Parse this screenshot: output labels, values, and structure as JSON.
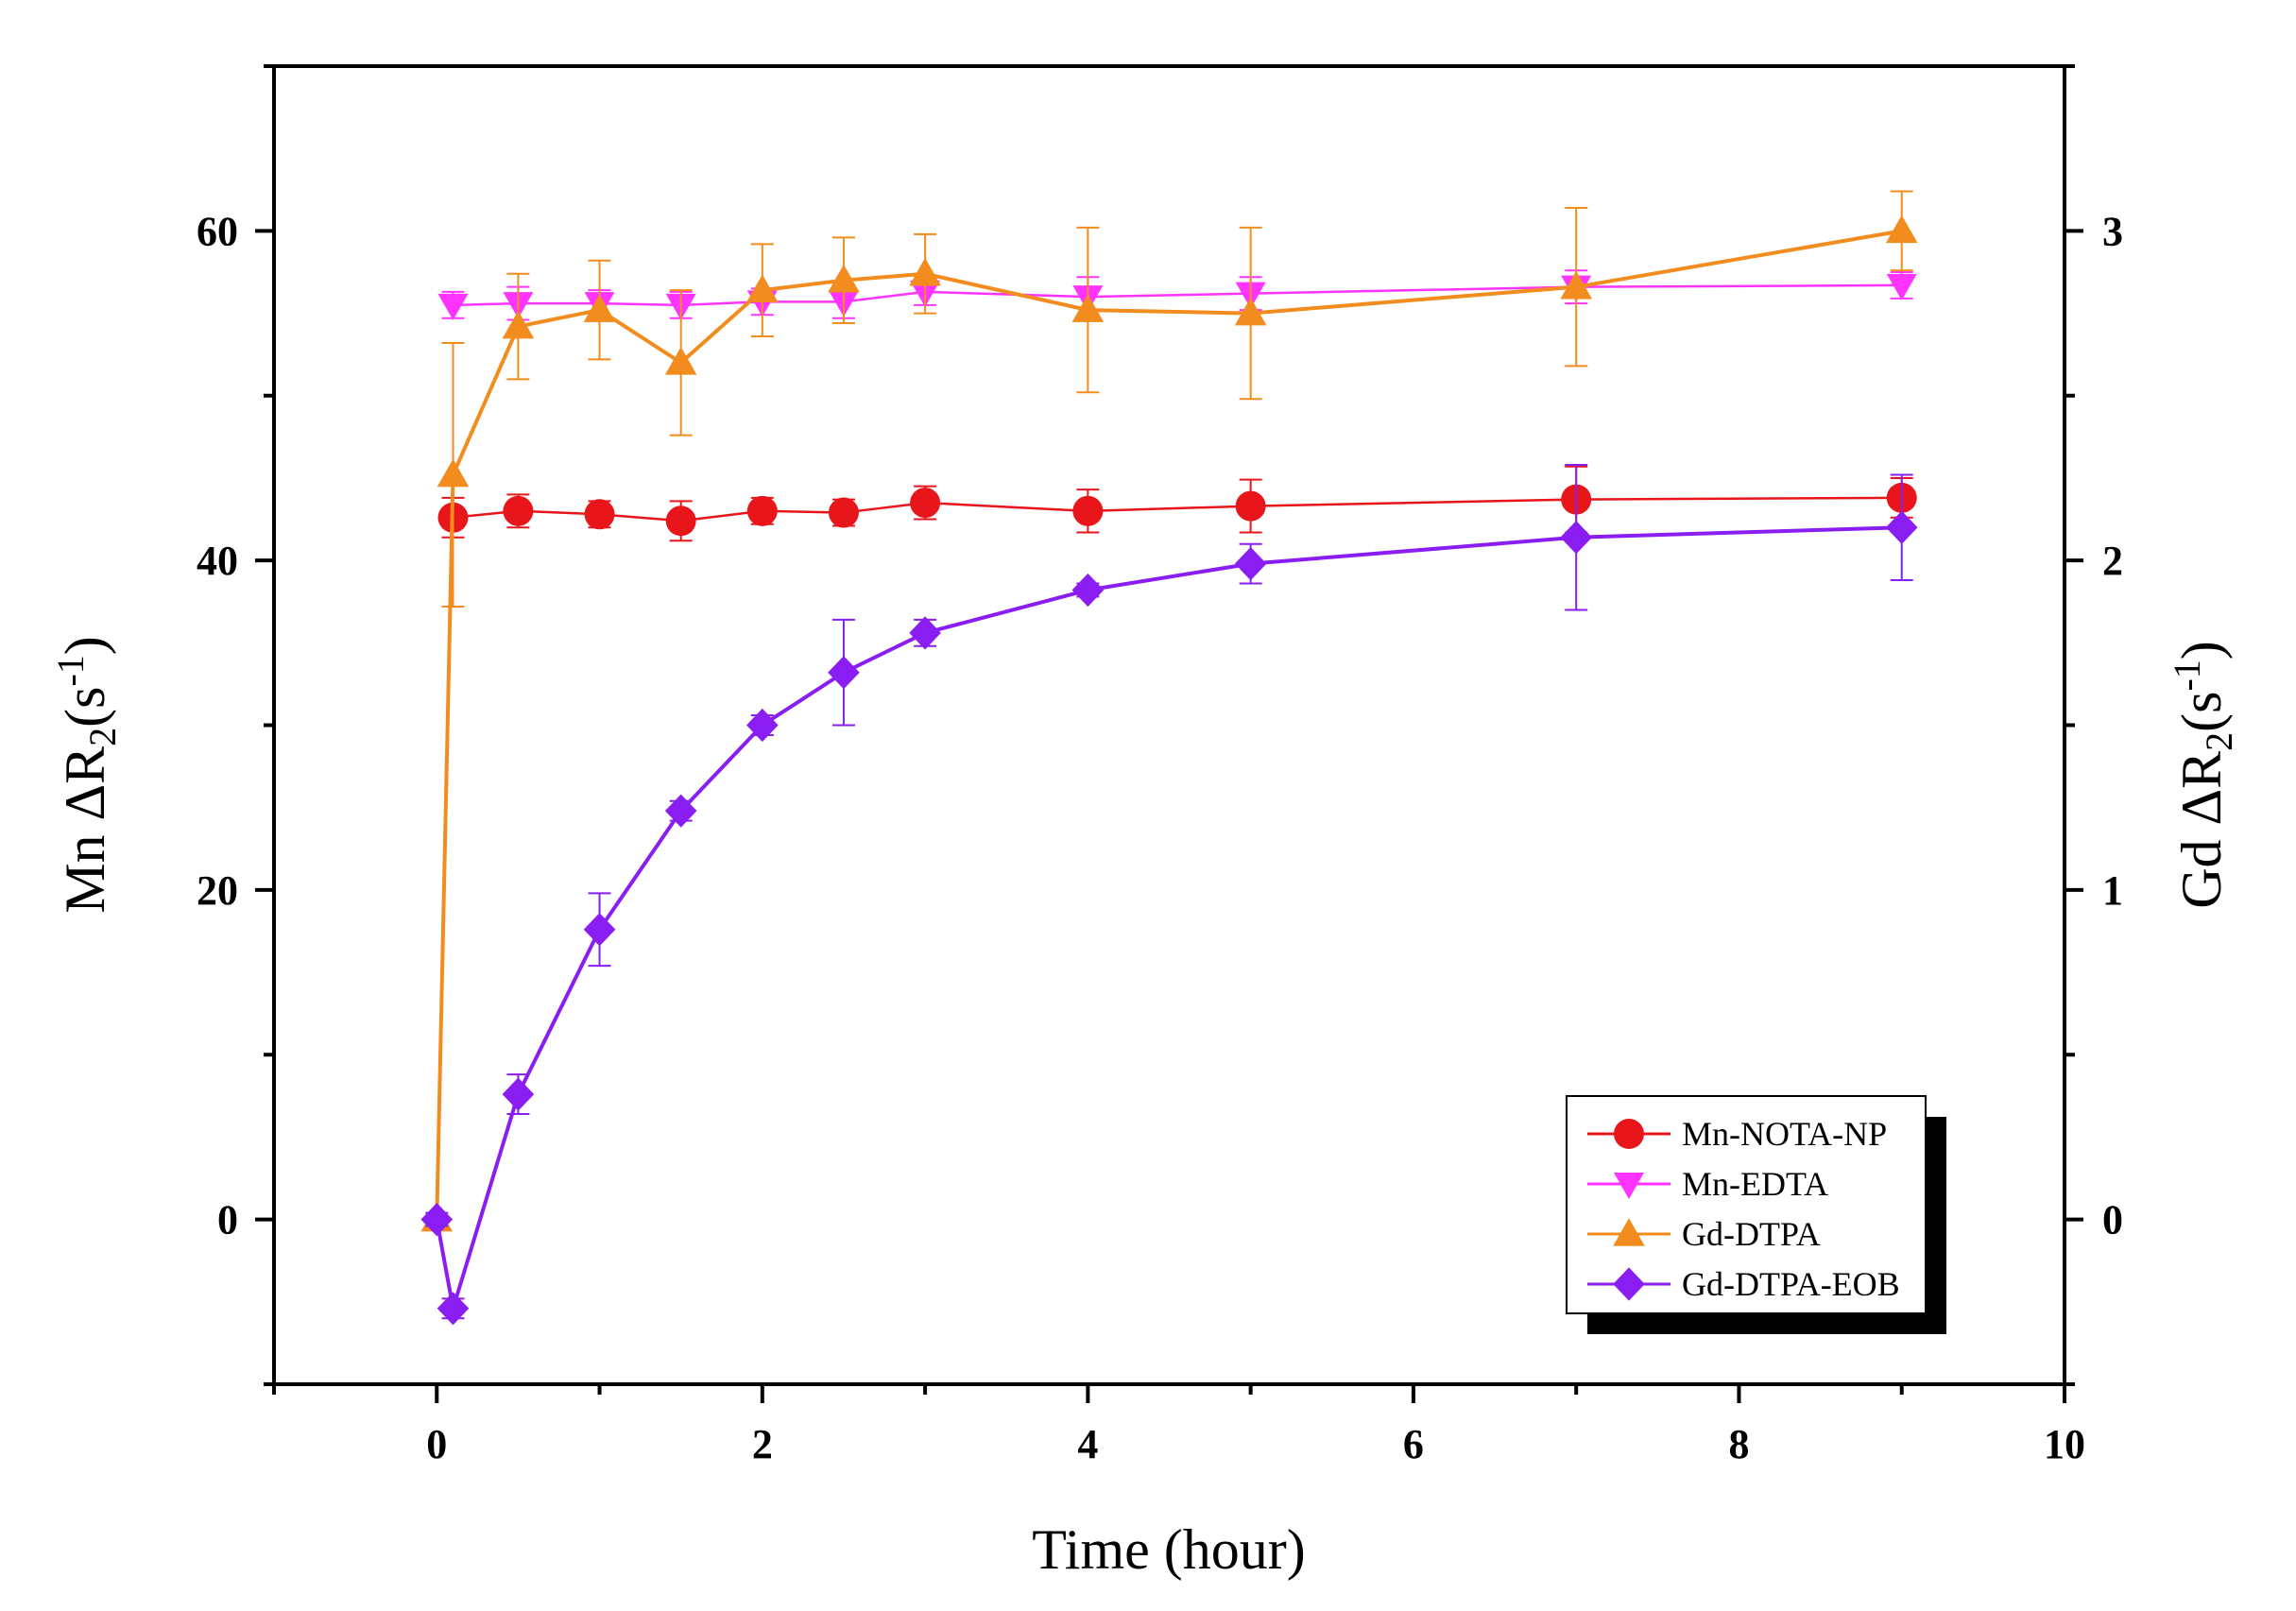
{
  "chart_data": {
    "type": "line",
    "title": "",
    "xlabel": "Time (hour)",
    "ylabel_left": {
      "prefix": "Mn ΔR",
      "sub": "2",
      "open": "(s",
      "sup": "-1",
      "close": ")"
    },
    "ylabel_right": {
      "prefix": "Gd ΔR",
      "sub": "2",
      "open": "(s",
      "sup": "-1",
      "close": ")"
    },
    "xlim": [
      -1,
      10
    ],
    "ylim_left": [
      -10,
      70
    ],
    "ylim_right": [
      -0.5,
      3.5
    ],
    "x_ticks": [
      0,
      2,
      4,
      6,
      8,
      10
    ],
    "y_ticks_left": [
      0,
      20,
      40,
      60
    ],
    "y_ticks_right": [
      0,
      1,
      2,
      3
    ],
    "grid": false,
    "legend_position": "bottom-right",
    "series": [
      {
        "name": "Mn-NOTA-NP",
        "axis": "left",
        "color": "#e8161b",
        "marker": "circle",
        "x": [
          0.1,
          0.5,
          1,
          1.5,
          2,
          2.5,
          3,
          4,
          5,
          7,
          9
        ],
        "y": [
          42.6,
          43.0,
          42.8,
          42.4,
          43.0,
          42.9,
          43.5,
          43.0,
          43.3,
          43.7,
          43.8
        ],
        "err": [
          1.2,
          1.0,
          0.8,
          1.2,
          0.8,
          0.8,
          1.0,
          1.3,
          1.6,
          2.0,
          1.2
        ]
      },
      {
        "name": "Mn-EDTA",
        "axis": "left",
        "color": "#ff33ff",
        "marker": "triangle-down",
        "x": [
          0.1,
          0.5,
          1,
          1.5,
          2,
          2.5,
          3,
          4,
          5,
          7,
          9
        ],
        "y": [
          55.5,
          55.6,
          55.6,
          55.5,
          55.7,
          55.7,
          56.3,
          56.0,
          56.2,
          56.6,
          56.7
        ],
        "err": [
          0.8,
          1.0,
          0.8,
          0.8,
          0.8,
          1.0,
          0.8,
          1.2,
          1.0,
          1.0,
          0.8
        ]
      },
      {
        "name": "Gd-DTPA",
        "axis": "right",
        "color": "#f28c1e",
        "marker": "triangle-up",
        "x": [
          0,
          0.1,
          0.5,
          1,
          1.5,
          2,
          2.5,
          3,
          4,
          5,
          7,
          9
        ],
        "y": [
          0.0,
          2.26,
          2.71,
          2.76,
          2.6,
          2.82,
          2.85,
          2.87,
          2.76,
          2.75,
          2.83,
          3.0
        ],
        "err": [
          0.0,
          0.4,
          0.16,
          0.15,
          0.22,
          0.14,
          0.13,
          0.12,
          0.25,
          0.26,
          0.24,
          0.12
        ]
      },
      {
        "name": "Gd-DTPA-EOB",
        "axis": "right",
        "color": "#8a1ef2",
        "marker": "diamond",
        "x": [
          0,
          0.1,
          0.5,
          1,
          1.5,
          2,
          2.5,
          3,
          4,
          5,
          7,
          9
        ],
        "y": [
          0.0,
          -0.27,
          0.38,
          0.88,
          1.24,
          1.5,
          1.66,
          1.78,
          1.91,
          1.99,
          2.07,
          2.1
        ],
        "err": [
          0.02,
          0.03,
          0.06,
          0.11,
          0.03,
          0.03,
          0.16,
          0.04,
          0.02,
          0.06,
          0.22,
          0.16
        ]
      }
    ]
  }
}
